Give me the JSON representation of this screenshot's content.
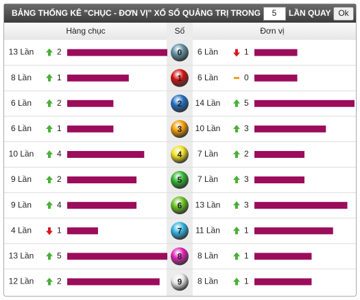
{
  "header": {
    "title": "BẢNG THỐNG KÊ \"CHỤC - ĐƠN VỊ\" XỔ SỐ QUẢNG TRỊ TRONG",
    "input_value": "5",
    "suffix": "LẦN QUAY",
    "button": "Ok"
  },
  "columns": {
    "tens": "Hàng chục",
    "digit": "Số",
    "units": "Đơn vị"
  },
  "bar_color": "#9b0c5b",
  "rows": [
    {
      "digit": 0,
      "color": "#5f8fa3",
      "tens": {
        "label": "13 Lần",
        "count": 13,
        "trend": "up",
        "change": 2
      },
      "units": {
        "label": "6 Lần",
        "count": 6,
        "trend": "down",
        "change": 1
      }
    },
    {
      "digit": 1,
      "color": "#d01010",
      "tens": {
        "label": "8 Lần",
        "count": 8,
        "trend": "up",
        "change": 1
      },
      "units": {
        "label": "6 Lần",
        "count": 6,
        "trend": "same",
        "change": 0
      }
    },
    {
      "digit": 2,
      "color": "#1f6ec4",
      "tens": {
        "label": "6 Lần",
        "count": 6,
        "trend": "up",
        "change": 2
      },
      "units": {
        "label": "14 Lần",
        "count": 14,
        "trend": "up",
        "change": 5
      }
    },
    {
      "digit": 3,
      "color": "#f29a00",
      "tens": {
        "label": "6 Lần",
        "count": 6,
        "trend": "up",
        "change": 1
      },
      "units": {
        "label": "10 Lần",
        "count": 10,
        "trend": "up",
        "change": 3
      }
    },
    {
      "digit": 4,
      "color": "#f0e020",
      "tens": {
        "label": "10 Lần",
        "count": 10,
        "trend": "up",
        "change": 4
      },
      "units": {
        "label": "7 Lần",
        "count": 7,
        "trend": "up",
        "change": 2
      }
    },
    {
      "digit": 5,
      "color": "#2fb52f",
      "tens": {
        "label": "9 Lần",
        "count": 9,
        "trend": "up",
        "change": 2
      },
      "units": {
        "label": "7 Lần",
        "count": 7,
        "trend": "up",
        "change": 3
      }
    },
    {
      "digit": 6,
      "color": "#66c21e",
      "tens": {
        "label": "9 Lần",
        "count": 9,
        "trend": "up",
        "change": 4
      },
      "units": {
        "label": "13 Lần",
        "count": 13,
        "trend": "up",
        "change": 3
      }
    },
    {
      "digit": 7,
      "color": "#2fb2e2",
      "tens": {
        "label": "4 Lần",
        "count": 4,
        "trend": "down",
        "change": 1
      },
      "units": {
        "label": "11 Lần",
        "count": 11,
        "trend": "up",
        "change": 1
      }
    },
    {
      "digit": 8,
      "color": "#e021b4",
      "tens": {
        "label": "13 Lần",
        "count": 13,
        "trend": "up",
        "change": 5
      },
      "units": {
        "label": "8 Lần",
        "count": 8,
        "trend": "up",
        "change": 1
      }
    },
    {
      "digit": 9,
      "color": "#e8e8e8",
      "tens": {
        "label": "12 Lần",
        "count": 12,
        "trend": "up",
        "change": 2
      },
      "units": {
        "label": "8 Lần",
        "count": 8,
        "trend": "up",
        "change": 1
      }
    }
  ]
}
